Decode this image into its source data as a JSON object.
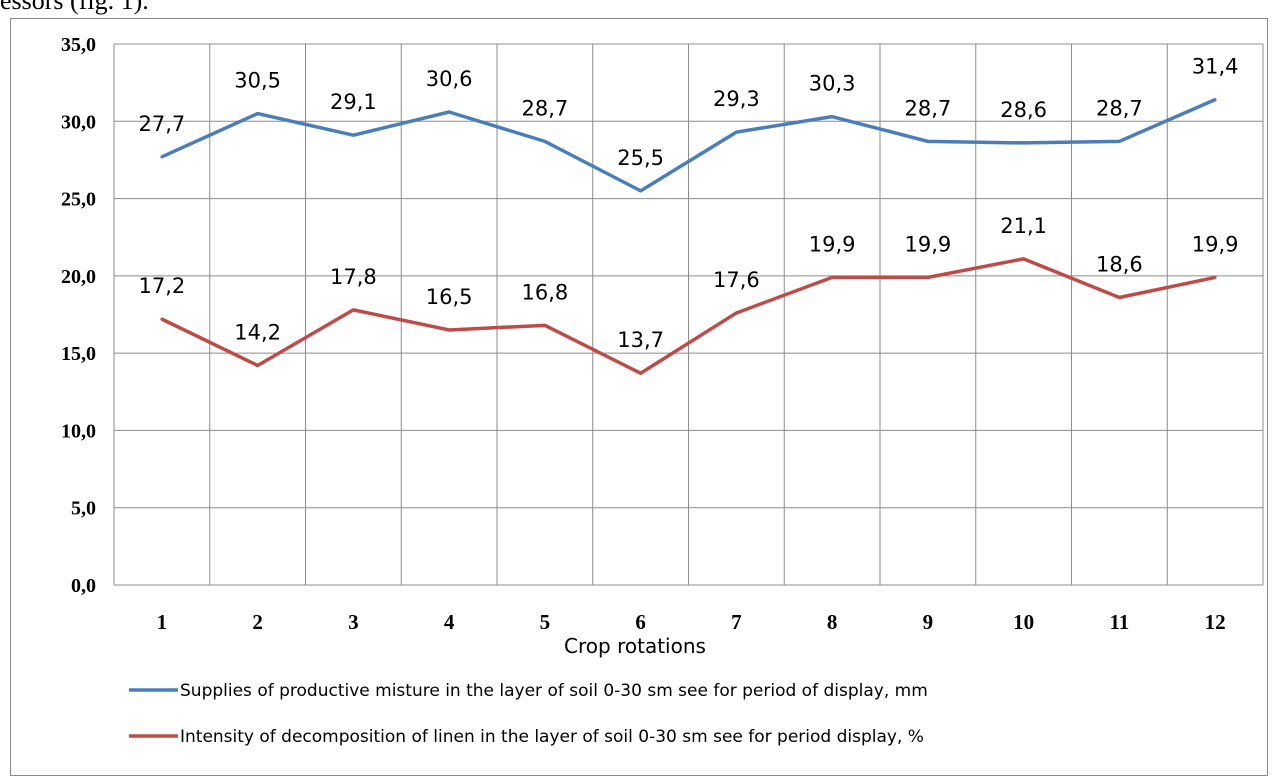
{
  "page": {
    "top_text": "essors (fig. 1)."
  },
  "chart_data": {
    "type": "line",
    "title": "",
    "xlabel": "Crop rotations",
    "ylabel": "",
    "categories": [
      "1",
      "2",
      "3",
      "4",
      "5",
      "6",
      "7",
      "8",
      "9",
      "10",
      "11",
      "12"
    ],
    "ylim": [
      0,
      35
    ],
    "yticks": [
      0,
      5,
      10,
      15,
      20,
      25,
      30,
      35
    ],
    "ytick_labels": [
      "0,0",
      "5,0",
      "10,0",
      "15,0",
      "20,0",
      "25,0",
      "30,0",
      "35,0"
    ],
    "grid": true,
    "legend_position": "bottom",
    "series": [
      {
        "name": "Supplies of productive misture in the layer of soil 0-30 sm see for period of display, mm",
        "color": "#4a7ebb",
        "values": [
          27.7,
          30.5,
          29.1,
          30.6,
          28.7,
          25.5,
          29.3,
          30.3,
          28.7,
          28.6,
          28.7,
          31.4
        ],
        "labels": [
          "27,7",
          "30,5",
          "29,1",
          "30,6",
          "28,7",
          "25,5",
          "29,3",
          "30,3",
          "28,7",
          "28,6",
          "28,7",
          "31,4"
        ]
      },
      {
        "name": "Intensity of decomposition of linen in the layer of soil 0-30 sm see for period display, %",
        "color": "#be4b48",
        "values": [
          17.2,
          14.2,
          17.8,
          16.5,
          16.8,
          13.7,
          17.6,
          19.9,
          19.9,
          21.1,
          18.6,
          19.9
        ],
        "labels": [
          "17,2",
          "14,2",
          "17,8",
          "16,5",
          "16,8",
          "13,7",
          "17,6",
          "19,9",
          "19,9",
          "21,1",
          "18,6",
          "19,9"
        ]
      }
    ]
  }
}
